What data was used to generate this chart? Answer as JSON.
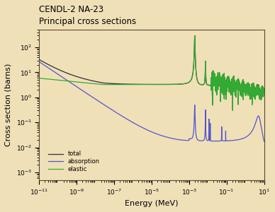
{
  "title_line1": "CENDL-2 NA-23",
  "title_line2": "Principal cross sections",
  "xlabel": "Energy (MeV)",
  "ylabel": "Cross section (barns)",
  "background_color": "#f0e0b8",
  "axes_bg_color": "#f0e0b8",
  "xlim_log": [
    -11,
    1
  ],
  "ylim_log": [
    -3.3,
    2.7
  ],
  "color_total": "#303030",
  "color_absorption": "#5555cc",
  "color_elastic": "#33aa33",
  "legend_labels": [
    "total",
    "absorption",
    "elastic"
  ],
  "title_fontsize": 8.5,
  "axis_label_fontsize": 8,
  "tick_fontsize": 6.5,
  "lw_total": 0.9,
  "lw_absorption": 0.9,
  "lw_elastic": 0.9
}
